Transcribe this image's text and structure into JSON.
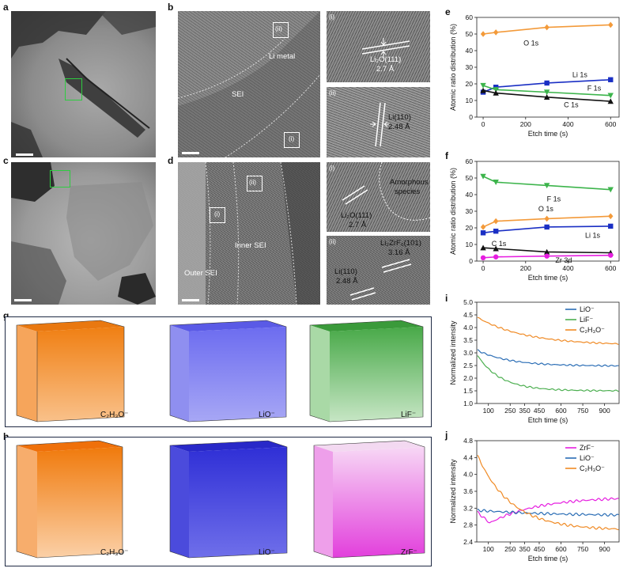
{
  "letters": {
    "a": "a",
    "b": "b",
    "c": "c",
    "d": "d",
    "e": "e",
    "f": "f",
    "g": "g",
    "h": "h",
    "i": "i",
    "j": "j"
  },
  "panel_b": {
    "li_metal": "Li metal",
    "sei": "SEI",
    "roman_ii": "(ii)",
    "roman_i": "(i)"
  },
  "panel_b_insets": {
    "i_tag": "(i)",
    "i_text1": "Li₂O(111)",
    "i_text2": "2.7 Å",
    "ii_tag": "(ii)",
    "ii_text1": "Li(110)",
    "ii_text2": "2.48 Å"
  },
  "panel_d": {
    "inner_sei": "Inner SEI",
    "outer_sei": "Outer SEI",
    "roman_ii": "(ii)",
    "roman_i": "(i)"
  },
  "panel_d_insets": {
    "i_tag": "(i)",
    "i_amorph1": "Amorphous",
    "i_amorph2": "species",
    "i_text1": "Li₂O(111)",
    "i_text2": "2.7 Å",
    "ii_tag": "(ii)",
    "ii_text1": "Li₂ZrF₆(101)",
    "ii_text2": "3.16 Å",
    "ii_text3": "Li(110)",
    "ii_text4": "2.48 Å"
  },
  "cubes_g": {
    "label1": "C₂H₃O⁻",
    "label2": "LiO⁻",
    "label3": "LiF⁻"
  },
  "cubes_h": {
    "label1": "C₂H₃O⁻",
    "label2": "LiO⁻",
    "label3": "ZrF⁻"
  },
  "colors": {
    "orange": "#f39a3a",
    "blue": "#1a2fc4",
    "green": "#3cb44b",
    "black": "#111111",
    "magenta": "#e61ee0",
    "i_blue": "#2a6db5",
    "i_green": "#4caf50",
    "i_orange": "#f08a24"
  },
  "chart_data": [
    {
      "id": "e",
      "type": "line",
      "xlabel": "Etch time (s)",
      "ylabel": "Atomic ratio distribution (%)",
      "xlim": [
        -30,
        640
      ],
      "ylim": [
        0,
        60
      ],
      "xticks": [
        0,
        200,
        400,
        600
      ],
      "yticks": [
        0,
        10,
        20,
        30,
        40,
        50,
        60
      ],
      "x": [
        0,
        60,
        300,
        600
      ],
      "series": [
        {
          "name": "O 1s",
          "color": "#f39a3a",
          "marker": "diamond",
          "values": [
            50,
            51,
            54,
            55.5
          ]
        },
        {
          "name": "Li 1s",
          "color": "#1a2fc4",
          "marker": "square",
          "values": [
            15,
            18,
            20.5,
            22.5
          ]
        },
        {
          "name": "F 1s",
          "color": "#3cb44b",
          "marker": "triangle-down",
          "values": [
            19,
            16.5,
            15,
            13
          ]
        },
        {
          "name": "C 1s",
          "color": "#111111",
          "marker": "triangle",
          "values": [
            16,
            14.5,
            12,
            9.5
          ]
        }
      ]
    },
    {
      "id": "f",
      "type": "line",
      "xlabel": "Etch time (s)",
      "ylabel": "Atomic ratio distribution (%)",
      "xlim": [
        -30,
        640
      ],
      "ylim": [
        0,
        60
      ],
      "xticks": [
        0,
        200,
        400,
        600
      ],
      "yticks": [
        0,
        10,
        20,
        30,
        40,
        50,
        60
      ],
      "x": [
        0,
        60,
        300,
        600
      ],
      "series": [
        {
          "name": "F 1s",
          "color": "#3cb44b",
          "marker": "triangle-down",
          "values": [
            51,
            47.5,
            45.5,
            43
          ]
        },
        {
          "name": "O 1s",
          "color": "#f39a3a",
          "marker": "diamond",
          "values": [
            20.5,
            24,
            25.5,
            27
          ]
        },
        {
          "name": "Li 1s",
          "color": "#1a2fc4",
          "marker": "square",
          "values": [
            17,
            18,
            20.5,
            21
          ]
        },
        {
          "name": "C 1s",
          "color": "#111111",
          "marker": "triangle",
          "values": [
            8,
            7.5,
            5.5,
            5
          ]
        },
        {
          "name": "Zr 3d",
          "color": "#e61ee0",
          "marker": "circle",
          "values": [
            2,
            2.5,
            3,
            3.5
          ]
        }
      ]
    },
    {
      "id": "i",
      "type": "line",
      "xlabel": "Etch time (s)",
      "ylabel": "Normalized intensity",
      "xlim": [
        20,
        1000
      ],
      "ylim": [
        1.0,
        5.0
      ],
      "xticks": [
        100,
        250,
        350,
        450,
        600,
        750,
        900
      ],
      "xticklabels": [
        "100",
        "250",
        "350",
        "450",
        "600",
        "750",
        "900"
      ],
      "yticks": [
        1.0,
        1.5,
        2.0,
        2.5,
        3.0,
        3.5,
        4.0,
        4.5,
        5.0
      ],
      "legend": [
        "LiO⁻",
        "LiF⁻",
        "C₂H₃O⁻"
      ],
      "series": [
        {
          "name": "LiO⁻",
          "color": "#2a6db5",
          "start": 3.1,
          "end": 2.48,
          "tau": 220
        },
        {
          "name": "LiF⁻",
          "color": "#4caf50",
          "start": 2.9,
          "end": 1.5,
          "tau": 160
        },
        {
          "name": "C₂H₃O⁻",
          "color": "#f08a24",
          "start": 4.4,
          "end": 3.3,
          "tau": 330
        }
      ]
    },
    {
      "id": "j",
      "type": "line",
      "xlabel": "Etch time (s)",
      "ylabel": "Normalized intensity",
      "xlim": [
        20,
        1000
      ],
      "ylim": [
        2.4,
        4.8
      ],
      "xticks": [
        100,
        250,
        350,
        450,
        600,
        750,
        900
      ],
      "xticklabels": [
        "100",
        "250",
        "350",
        "450",
        "600",
        "750",
        "900"
      ],
      "yticks": [
        2.4,
        2.8,
        3.2,
        3.6,
        4.0,
        4.4,
        4.8
      ],
      "legend": [
        "ZrF⁻",
        "LiO⁻",
        "C₂H₃O⁻"
      ],
      "series": [
        {
          "name": "ZrF⁻",
          "color": "#e61ee0",
          "kind": "dip",
          "start": 3.1,
          "min": 2.85,
          "end": 3.47
        },
        {
          "name": "LiO⁻",
          "color": "#2a6db5",
          "start": 3.15,
          "end": 3.02,
          "tau": 500
        },
        {
          "name": "C₂H₃O⁻",
          "color": "#f08a24",
          "start": 4.45,
          "end": 2.68,
          "tau": 230
        }
      ]
    }
  ]
}
